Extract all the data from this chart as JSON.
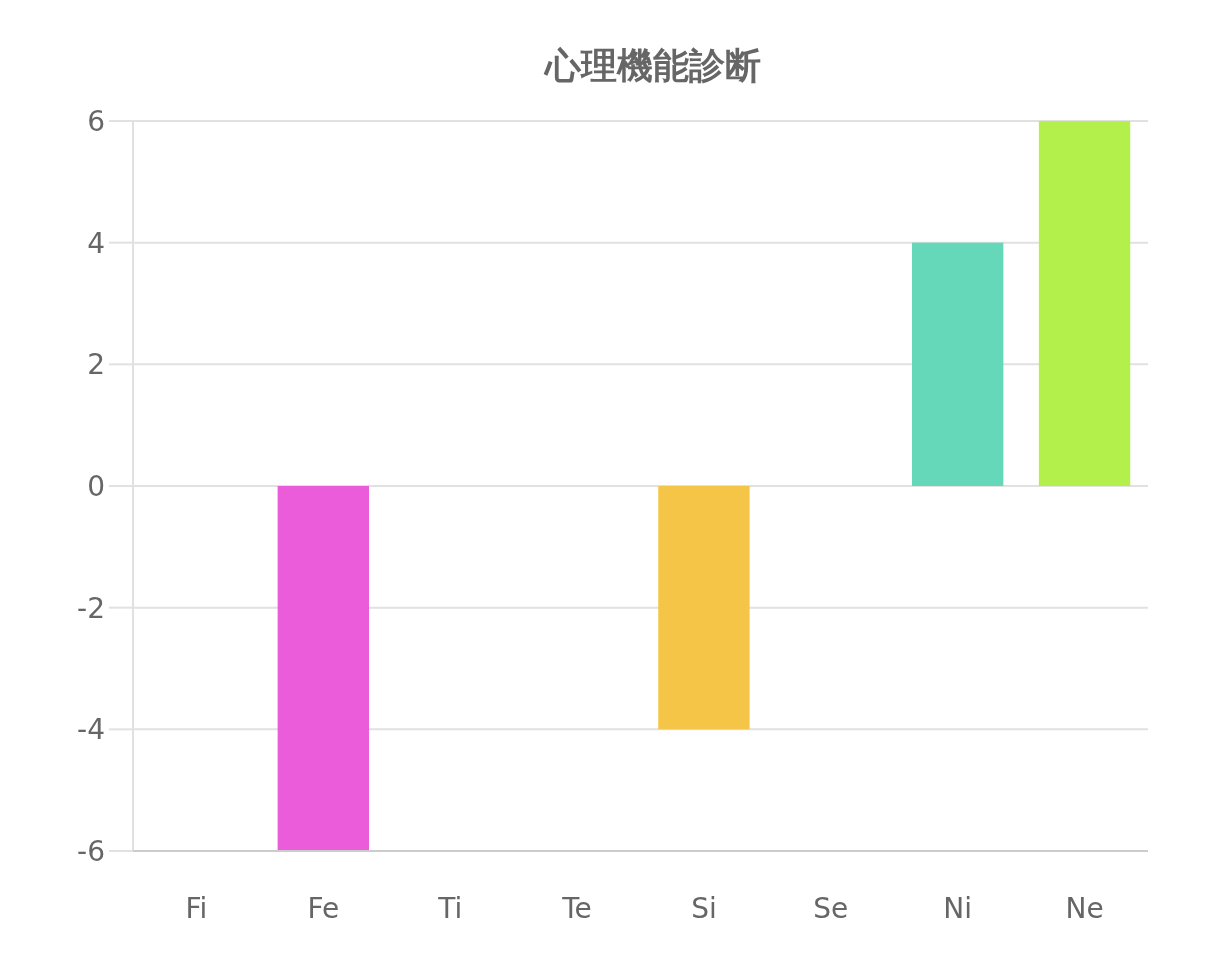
{
  "chart_data": {
    "type": "bar",
    "title": "心理機能診断",
    "categories": [
      "Fi",
      "Fe",
      "Ti",
      "Te",
      "Si",
      "Se",
      "Ni",
      "Ne"
    ],
    "values": [
      0,
      -6,
      0,
      0,
      -4,
      0,
      4,
      6
    ],
    "colors": [
      "#5ba8ec",
      "#eb5cda",
      "#8f7ef0",
      "#f08a5b",
      "#f4c547",
      "#f06b6b",
      "#64d8b8",
      "#b4f04b"
    ],
    "ylim": [
      -6,
      6
    ],
    "yticks": [
      -6,
      -4,
      -2,
      0,
      2,
      4,
      6
    ],
    "grid": "y"
  }
}
